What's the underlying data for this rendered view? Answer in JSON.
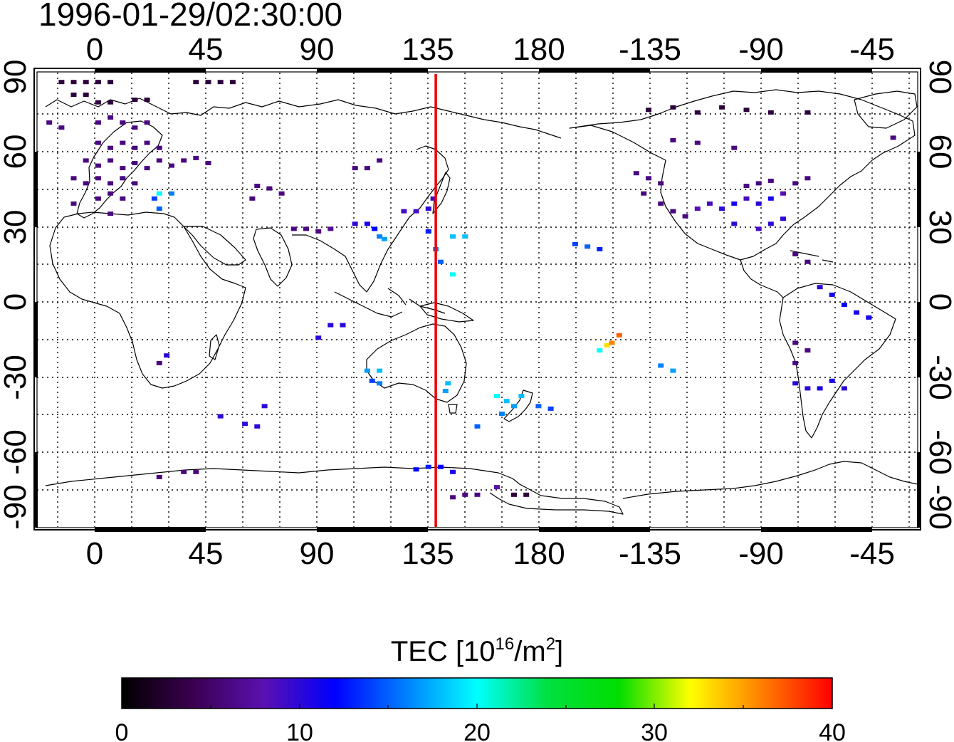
{
  "timestamp": "1996-01-29/02:30:00",
  "lon_ticks_top": [
    "0",
    "45",
    "90",
    "135",
    "180",
    "-135",
    "-90",
    "-45"
  ],
  "lon_ticks_bottom": [
    "0",
    "45",
    "90",
    "135",
    "180",
    "-135",
    "-90",
    "-45"
  ],
  "lat_ticks_left": [
    "90",
    "60",
    "30",
    "0",
    "-30",
    "-60",
    "-90"
  ],
  "lat_ticks_right": [
    "90",
    "60",
    "30",
    "0",
    "-30",
    "-60",
    "-90"
  ],
  "colorbar": {
    "label_main": "TEC  [10",
    "label_sup1": "16",
    "label_mid": "/m",
    "label_sup2": "2",
    "label_end": "]",
    "ticks": [
      "0",
      "10",
      "20",
      "30",
      "40"
    ],
    "range": [
      0,
      40
    ],
    "stops": [
      "#000000",
      "#3a0050",
      "#5a10b0",
      "#0000ff",
      "#0080ff",
      "#00ffff",
      "#00e040",
      "#00dd00",
      "#ffff00",
      "#ff8000",
      "#ff0000"
    ]
  },
  "colors": {
    "marker_line": "#ee0000",
    "coastline": "#000000"
  },
  "chart_data": {
    "type": "map",
    "xlabel": "",
    "ylabel": "",
    "xlim": [
      -20,
      340
    ],
    "ylim": [
      -90,
      90
    ],
    "grid": true,
    "marker_longitude": 143,
    "units": "TECU (10^16/m^2)",
    "points": [
      {
        "lon": -10,
        "lat": 86,
        "tec": 3
      },
      {
        "lon": -5,
        "lat": 86,
        "tec": 3
      },
      {
        "lon": 0,
        "lat": 86,
        "tec": 3
      },
      {
        "lon": 5,
        "lat": 86,
        "tec": 3
      },
      {
        "lon": 10,
        "lat": 86,
        "tec": 3
      },
      {
        "lon": 45,
        "lat": 86,
        "tec": 3
      },
      {
        "lon": 50,
        "lat": 86,
        "tec": 3
      },
      {
        "lon": 55,
        "lat": 86,
        "tec": 3
      },
      {
        "lon": 60,
        "lat": 86,
        "tec": 3
      },
      {
        "lon": -5,
        "lat": 81,
        "tec": 3
      },
      {
        "lon": 0,
        "lat": 81,
        "tec": 3
      },
      {
        "lon": 20,
        "lat": 79,
        "tec": 3
      },
      {
        "lon": 25,
        "lat": 79,
        "tec": 3
      },
      {
        "lon": 5,
        "lat": 78,
        "tec": 3
      },
      {
        "lon": 10,
        "lat": 78,
        "tec": 3
      },
      {
        "lon": -15,
        "lat": 70,
        "tec": 6
      },
      {
        "lon": -10,
        "lat": 68,
        "tec": 6
      },
      {
        "lon": 5,
        "lat": 70,
        "tec": 6
      },
      {
        "lon": 10,
        "lat": 72,
        "tec": 6
      },
      {
        "lon": 15,
        "lat": 70,
        "tec": 6
      },
      {
        "lon": 20,
        "lat": 68,
        "tec": 6
      },
      {
        "lon": 25,
        "lat": 70,
        "tec": 6
      },
      {
        "lon": 5,
        "lat": 62,
        "tec": 6
      },
      {
        "lon": 10,
        "lat": 60,
        "tec": 6
      },
      {
        "lon": 15,
        "lat": 62,
        "tec": 6
      },
      {
        "lon": 20,
        "lat": 60,
        "tec": 6
      },
      {
        "lon": 25,
        "lat": 62,
        "tec": 6
      },
      {
        "lon": 30,
        "lat": 60,
        "tec": 6
      },
      {
        "lon": 0,
        "lat": 55,
        "tec": 6
      },
      {
        "lon": 5,
        "lat": 53,
        "tec": 6
      },
      {
        "lon": 10,
        "lat": 55,
        "tec": 6
      },
      {
        "lon": 15,
        "lat": 52,
        "tec": 6
      },
      {
        "lon": 20,
        "lat": 54,
        "tec": 6
      },
      {
        "lon": 25,
        "lat": 52,
        "tec": 6
      },
      {
        "lon": 30,
        "lat": 55,
        "tec": 6
      },
      {
        "lon": 35,
        "lat": 53,
        "tec": 6
      },
      {
        "lon": -5,
        "lat": 48,
        "tec": 6
      },
      {
        "lon": 0,
        "lat": 46,
        "tec": 6
      },
      {
        "lon": 5,
        "lat": 48,
        "tec": 6
      },
      {
        "lon": 10,
        "lat": 46,
        "tec": 6
      },
      {
        "lon": 15,
        "lat": 48,
        "tec": 6
      },
      {
        "lon": 20,
        "lat": 46,
        "tec": 6
      },
      {
        "lon": 40,
        "lat": 55,
        "tec": 6
      },
      {
        "lon": 45,
        "lat": 56,
        "tec": 6
      },
      {
        "lon": 50,
        "lat": 54,
        "tec": 6
      },
      {
        "lon": 5,
        "lat": 40,
        "tec": 6
      },
      {
        "lon": 10,
        "lat": 42,
        "tec": 6
      },
      {
        "lon": 15,
        "lat": 40,
        "tec": 6
      },
      {
        "lon": -5,
        "lat": 38,
        "tec": 6
      },
      {
        "lon": 10,
        "lat": 34,
        "tec": 6
      },
      {
        "lon": 28,
        "lat": 40,
        "tec": 14
      },
      {
        "lon": 30,
        "lat": 42,
        "tec": 20
      },
      {
        "lon": 35,
        "lat": 42,
        "tec": 16
      },
      {
        "lon": 30,
        "lat": 36,
        "tec": 15
      },
      {
        "lon": 70,
        "lat": 45,
        "tec": 6
      },
      {
        "lon": 75,
        "lat": 44,
        "tec": 6
      },
      {
        "lon": 80,
        "lat": 42,
        "tec": 6
      },
      {
        "lon": 68,
        "lat": 40,
        "tec": 6
      },
      {
        "lon": 85,
        "lat": 28,
        "tec": 6
      },
      {
        "lon": 90,
        "lat": 28,
        "tec": 6
      },
      {
        "lon": 95,
        "lat": 27,
        "tec": 6
      },
      {
        "lon": 100,
        "lat": 28,
        "tec": 7
      },
      {
        "lon": 110,
        "lat": 52,
        "tec": 6
      },
      {
        "lon": 115,
        "lat": 52,
        "tec": 6
      },
      {
        "lon": 120,
        "lat": 55,
        "tec": 6
      },
      {
        "lon": 110,
        "lat": 30,
        "tec": 10
      },
      {
        "lon": 115,
        "lat": 30,
        "tec": 11
      },
      {
        "lon": 118,
        "lat": 28,
        "tec": 12
      },
      {
        "lon": 120,
        "lat": 25,
        "tec": 16
      },
      {
        "lon": 122,
        "lat": 24,
        "tec": 17
      },
      {
        "lon": 130,
        "lat": 35,
        "tec": 9
      },
      {
        "lon": 135,
        "lat": 35,
        "tec": 9
      },
      {
        "lon": 140,
        "lat": 36,
        "tec": 10
      },
      {
        "lon": 142,
        "lat": 40,
        "tec": 9
      },
      {
        "lon": 140,
        "lat": 27,
        "tec": 13
      },
      {
        "lon": 143,
        "lat": 20,
        "tec": 16
      },
      {
        "lon": 145,
        "lat": 15,
        "tec": 15
      },
      {
        "lon": 150,
        "lat": 25,
        "tec": 18
      },
      {
        "lon": 155,
        "lat": 25,
        "tec": 18
      },
      {
        "lon": 150,
        "lat": 10,
        "tec": 20
      },
      {
        "lon": 100,
        "lat": -10,
        "tec": 10
      },
      {
        "lon": 105,
        "lat": -10,
        "tec": 10
      },
      {
        "lon": 95,
        "lat": -15,
        "tec": 10
      },
      {
        "lon": 115,
        "lat": -28,
        "tec": 17
      },
      {
        "lon": 120,
        "lat": -28,
        "tec": 18
      },
      {
        "lon": 117,
        "lat": -32,
        "tec": 14
      },
      {
        "lon": 120,
        "lat": -33,
        "tec": 16
      },
      {
        "lon": 148,
        "lat": -33,
        "tec": 18
      },
      {
        "lon": 147,
        "lat": -36,
        "tec": 17
      },
      {
        "lon": 168,
        "lat": -38,
        "tec": 20
      },
      {
        "lon": 172,
        "lat": -40,
        "tec": 18
      },
      {
        "lon": 175,
        "lat": -42,
        "tec": 17
      },
      {
        "lon": 170,
        "lat": -45,
        "tec": 16
      },
      {
        "lon": 178,
        "lat": -38,
        "tec": 18
      },
      {
        "lon": 185,
        "lat": -42,
        "tec": 15
      },
      {
        "lon": 190,
        "lat": -43,
        "tec": 14
      },
      {
        "lon": 160,
        "lat": -50,
        "tec": 15
      },
      {
        "lon": 200,
        "lat": 22,
        "tec": 14
      },
      {
        "lon": 205,
        "lat": 21,
        "tec": 15
      },
      {
        "lon": 210,
        "lat": 20,
        "tec": 13
      },
      {
        "lon": 210,
        "lat": -20,
        "tec": 20
      },
      {
        "lon": 213,
        "lat": -18,
        "tec": 33
      },
      {
        "lon": 215,
        "lat": -17,
        "tec": 36
      },
      {
        "lon": 218,
        "lat": -14,
        "tec": 37
      },
      {
        "lon": 235,
        "lat": -26,
        "tec": 16
      },
      {
        "lon": 240,
        "lat": -28,
        "tec": 17
      },
      {
        "lon": 225,
        "lat": 50,
        "tec": 6
      },
      {
        "lon": 230,
        "lat": 48,
        "tec": 6
      },
      {
        "lon": 235,
        "lat": 46,
        "tec": 6
      },
      {
        "lon": 228,
        "lat": 42,
        "tec": 6
      },
      {
        "lon": 235,
        "lat": 38,
        "tec": 6
      },
      {
        "lon": 240,
        "lat": 35,
        "tec": 6
      },
      {
        "lon": 245,
        "lat": 33,
        "tec": 6
      },
      {
        "lon": 250,
        "lat": 36,
        "tec": 8
      },
      {
        "lon": 255,
        "lat": 38,
        "tec": 9
      },
      {
        "lon": 260,
        "lat": 36,
        "tec": 10
      },
      {
        "lon": 265,
        "lat": 38,
        "tec": 11
      },
      {
        "lon": 270,
        "lat": 40,
        "tec": 9
      },
      {
        "lon": 275,
        "lat": 38,
        "tec": 10
      },
      {
        "lon": 280,
        "lat": 40,
        "tec": 11
      },
      {
        "lon": 285,
        "lat": 42,
        "tec": 8
      },
      {
        "lon": 270,
        "lat": 45,
        "tec": 6
      },
      {
        "lon": 275,
        "lat": 46,
        "tec": 6
      },
      {
        "lon": 280,
        "lat": 47,
        "tec": 6
      },
      {
        "lon": 290,
        "lat": 46,
        "tec": 6
      },
      {
        "lon": 295,
        "lat": 48,
        "tec": 6
      },
      {
        "lon": 265,
        "lat": 30,
        "tec": 10
      },
      {
        "lon": 275,
        "lat": 28,
        "tec": 9
      },
      {
        "lon": 280,
        "lat": 30,
        "tec": 10
      },
      {
        "lon": 285,
        "lat": 32,
        "tec": 10
      },
      {
        "lon": 230,
        "lat": 75,
        "tec": 3
      },
      {
        "lon": 240,
        "lat": 76,
        "tec": 3
      },
      {
        "lon": 250,
        "lat": 74,
        "tec": 3
      },
      {
        "lon": 260,
        "lat": 76,
        "tec": 3
      },
      {
        "lon": 270,
        "lat": 75,
        "tec": 3
      },
      {
        "lon": 280,
        "lat": 74,
        "tec": 3
      },
      {
        "lon": 295,
        "lat": 74,
        "tec": 3
      },
      {
        "lon": 240,
        "lat": 63,
        "tec": 6
      },
      {
        "lon": 250,
        "lat": 62,
        "tec": 6
      },
      {
        "lon": 265,
        "lat": 60,
        "tec": 6
      },
      {
        "lon": 330,
        "lat": 64,
        "tec": 6
      },
      {
        "lon": 290,
        "lat": 18,
        "tec": 6
      },
      {
        "lon": 295,
        "lat": 15,
        "tec": 6
      },
      {
        "lon": 300,
        "lat": 5,
        "tec": 10
      },
      {
        "lon": 305,
        "lat": 2,
        "tec": 11
      },
      {
        "lon": 310,
        "lat": -2,
        "tec": 12
      },
      {
        "lon": 315,
        "lat": -5,
        "tec": 11
      },
      {
        "lon": 320,
        "lat": -7,
        "tec": 11
      },
      {
        "lon": 290,
        "lat": -17,
        "tec": 6
      },
      {
        "lon": 295,
        "lat": -20,
        "tec": 6
      },
      {
        "lon": 290,
        "lat": -25,
        "tec": 6
      },
      {
        "lon": 290,
        "lat": -33,
        "tec": 10
      },
      {
        "lon": 295,
        "lat": -35,
        "tec": 10
      },
      {
        "lon": 300,
        "lat": -35,
        "tec": 11
      },
      {
        "lon": 305,
        "lat": -32,
        "tec": 11
      },
      {
        "lon": 310,
        "lat": -35,
        "tec": 10
      },
      {
        "lon": 55,
        "lat": -46,
        "tec": 10
      },
      {
        "lon": 65,
        "lat": -49,
        "tec": 10
      },
      {
        "lon": 70,
        "lat": -50,
        "tec": 10
      },
      {
        "lon": 73,
        "lat": -42,
        "tec": 10
      },
      {
        "lon": 30,
        "lat": -70,
        "tec": 6
      },
      {
        "lon": 40,
        "lat": -68,
        "tec": 6
      },
      {
        "lon": 45,
        "lat": -68,
        "tec": 6
      },
      {
        "lon": 135,
        "lat": -67,
        "tec": 12
      },
      {
        "lon": 140,
        "lat": -66,
        "tec": 13
      },
      {
        "lon": 145,
        "lat": -66,
        "tec": 12
      },
      {
        "lon": 150,
        "lat": -68,
        "tec": 11
      },
      {
        "lon": 150,
        "lat": -78,
        "tec": 6
      },
      {
        "lon": 155,
        "lat": -77,
        "tec": 6
      },
      {
        "lon": 160,
        "lat": -77,
        "tec": 6
      },
      {
        "lon": 168,
        "lat": -74,
        "tec": 8
      },
      {
        "lon": 175,
        "lat": -77,
        "tec": 3
      },
      {
        "lon": 180,
        "lat": -77,
        "tec": 3
      },
      {
        "lon": 30,
        "lat": -25,
        "tec": 6
      },
      {
        "lon": 33,
        "lat": -22,
        "tec": 10
      }
    ]
  }
}
